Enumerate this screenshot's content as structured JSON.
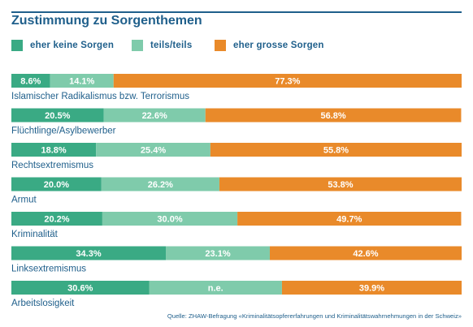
{
  "colors": {
    "accent": "#1f5f8b",
    "keine": "#3aaa84",
    "teils": "#7fcbab",
    "grosse": "#e98a2a",
    "bar_text": "#ffffff"
  },
  "chart_data": {
    "type": "bar",
    "orientation": "horizontal",
    "stacked": true,
    "title": "Zustimmung zu Sorgenthemen",
    "categories": [
      "Islamischer Radikalismus bzw. Terrorismus",
      "Flüchtlinge/Asylbewerber",
      "Rechtsextremismus",
      "Armut",
      "Kriminalität",
      "Linksextremismus",
      "Arbeitslosigkeit"
    ],
    "series": [
      {
        "name": "eher keine Sorgen",
        "values": [
          8.6,
          20.5,
          18.8,
          20.0,
          20.2,
          34.3,
          30.6
        ],
        "labels": [
          "8.6%",
          "20.5%",
          "18.8%",
          "20.0%",
          "20.2%",
          "34.3%",
          "30.6%"
        ]
      },
      {
        "name": "teils/teils",
        "values": [
          14.1,
          22.6,
          25.4,
          26.2,
          30.0,
          23.1,
          29.5
        ],
        "labels": [
          "14.1%",
          "22.6%",
          "25.4%",
          "26.2%",
          "30.0%",
          "23.1%",
          "n.e."
        ]
      },
      {
        "name": "eher grosse Sorgen",
        "values": [
          77.3,
          56.8,
          55.8,
          53.8,
          49.7,
          42.6,
          39.9
        ],
        "labels": [
          "77.3%",
          "56.8%",
          "55.8%",
          "53.8%",
          "49.7%",
          "42.6%",
          "39.9%"
        ]
      }
    ],
    "xlim": [
      0,
      100
    ],
    "legend_position": "top-left",
    "grid": false,
    "source": "Quelle: ZHAW-Befragung «Kriminalitätsopfererfahrungen und Kriminalitätswahrnehmungen in der Schweiz»"
  }
}
